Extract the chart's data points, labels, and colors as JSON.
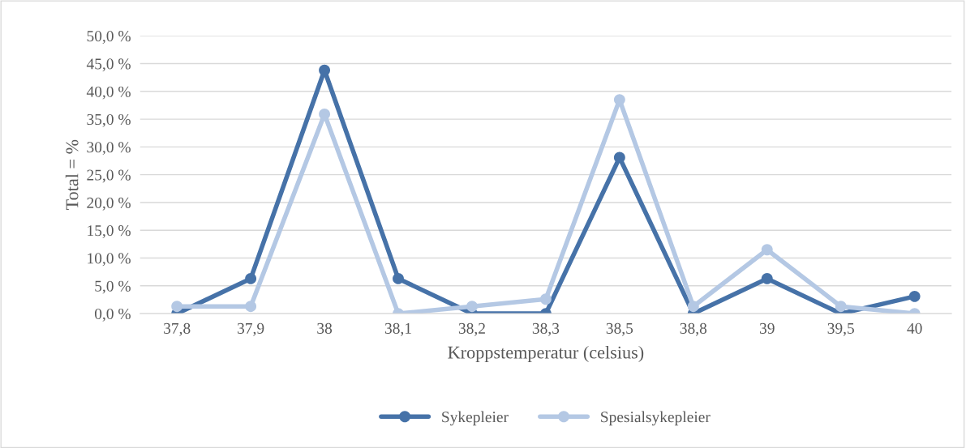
{
  "chart_data": {
    "type": "line",
    "xlabel": "Kroppstemperatur (celsius)",
    "ylabel": "Total = %",
    "categories": [
      "37,8",
      "37,9",
      "38",
      "38,1",
      "38,2",
      "38,3",
      "38,5",
      "38,8",
      "39",
      "39,5",
      "40"
    ],
    "series": [
      {
        "name": "Sykepleier",
        "color": "#4672a8",
        "values": [
          0,
          6.3,
          43.8,
          6.3,
          0,
          0,
          28.1,
          0,
          6.3,
          0,
          3.1
        ]
      },
      {
        "name": "Spesialsykepleier",
        "color": "#b4c8e4",
        "values": [
          1.3,
          1.3,
          35.9,
          0,
          1.3,
          2.6,
          38.5,
          1.3,
          11.5,
          1.3,
          0
        ]
      }
    ],
    "ylim": [
      0,
      50
    ],
    "yticks": [
      {
        "value": 0,
        "label": "0,0 %"
      },
      {
        "value": 5,
        "label": "5,0 %"
      },
      {
        "value": 10,
        "label": "10,0 %"
      },
      {
        "value": 15,
        "label": "15,0 %"
      },
      {
        "value": 20,
        "label": "20,0 %"
      },
      {
        "value": 25,
        "label": "25,0 %"
      },
      {
        "value": 30,
        "label": "30,0 %"
      },
      {
        "value": 35,
        "label": "35,0 %"
      },
      {
        "value": 40,
        "label": "40,0 %"
      },
      {
        "value": 45,
        "label": "45,0 %"
      },
      {
        "value": 50,
        "label": "50,0 %"
      }
    ],
    "grid": "y",
    "legend": "bottom",
    "marker": "circle",
    "line_style": "solid"
  }
}
